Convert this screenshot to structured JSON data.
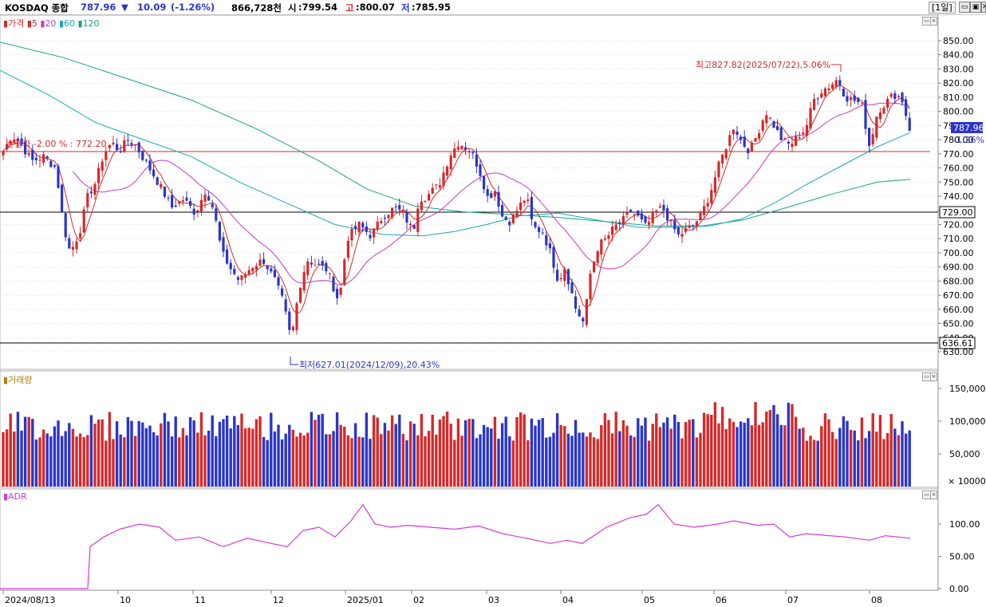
{
  "header": {
    "symbol": "KOSDAQ 종합",
    "price": "787.96",
    "change_arrow": "▼",
    "change": "10.09",
    "change_pct": "(-1.26%)",
    "volume": "866,728천",
    "open_label": "시",
    "open": ":799.54",
    "high_label": "고",
    "high": ":800.07",
    "low_label": "저",
    "low": ":785.95",
    "period": "[1일]",
    "buttons": [
      "▭",
      "▣",
      "✕"
    ]
  },
  "price_pane": {
    "legend": {
      "price": "가격",
      "ma5": "5",
      "ma20": "20",
      "ma60": "60",
      "ma120": "120"
    },
    "current_price_tag": "787.96",
    "current_change_tag": "-1.26%",
    "hline_729": "729.00",
    "hline_636": "636.61",
    "red_hline_label": "손절가 -2.00 % : 772.20",
    "high_annotation": "최고827.82(2025/07/22),5.06%",
    "low_annotation": "최저627.01(2024/12/09),20.43%",
    "y_ticks": [
      "850.00",
      "840.00",
      "830.00",
      "820.00",
      "810.00",
      "800.00",
      "790.00",
      "780.00",
      "770.00",
      "760.00",
      "750.00",
      "740.00",
      "730.00",
      "720.00",
      "710.00",
      "700.00",
      "690.00",
      "680.00",
      "670.00",
      "660.00",
      "650.00",
      "640.00",
      "630.00"
    ]
  },
  "volume_pane": {
    "legend": "거래량",
    "y_ticks": [
      "150,000",
      "100,000",
      "50,000"
    ],
    "unit": "× 10000"
  },
  "adr_pane": {
    "legend": "ADR",
    "y_ticks": [
      "100.00",
      "50.00",
      "0.00"
    ]
  },
  "x_axis": {
    "labels": [
      "2024/08/13",
      "10",
      "11",
      "12",
      "2025/01",
      "02",
      "03",
      "04",
      "05",
      "06",
      "07",
      "08"
    ]
  },
  "colors": {
    "up": "#d42a2a",
    "down": "#2a35c8",
    "ma5": "#d42a2a",
    "ma20": "#c23cc2",
    "ma60": "#18a8b8",
    "ma120": "#1aa384",
    "adr": "#d63ad6",
    "stop_line": "#d42a2a"
  },
  "chart_data": {
    "type": "candlestick",
    "title": "KOSDAQ 종합",
    "period": "daily",
    "date_range": [
      "2024/08/13",
      "2025/08 (latest)"
    ],
    "latest": {
      "close": 787.96,
      "open": 799.54,
      "high": 800.07,
      "low": 785.95,
      "change": -10.09,
      "change_pct": -1.26
    },
    "period_high": {
      "value": 827.82,
      "date": "2025/07/22"
    },
    "period_low": {
      "value": 627.01,
      "date": "2024/12/09"
    },
    "horizontal_lines": [
      729.0,
      636.61,
      772.2
    ],
    "approx_close_by_month": [
      {
        "month": "2024/08",
        "close": 765
      },
      {
        "month": "2024/09",
        "close": 745
      },
      {
        "month": "2024/10",
        "close": 740
      },
      {
        "month": "2024/11",
        "close": 680
      },
      {
        "month": "2024/12",
        "close": 675
      },
      {
        "month": "2025/01",
        "close": 725
      },
      {
        "month": "2025/02",
        "close": 765
      },
      {
        "month": "2025/03",
        "close": 705
      },
      {
        "month": "2025/04",
        "close": 705
      },
      {
        "month": "2025/05",
        "close": 715
      },
      {
        "month": "2025/06",
        "close": 790
      },
      {
        "month": "2025/07",
        "close": 805
      },
      {
        "month": "2025/08",
        "close": 788
      }
    ],
    "price_ylim": [
      627,
      855
    ],
    "volume_ylim": [
      0,
      160000
    ],
    "adr_ylim": [
      0,
      140
    ]
  }
}
